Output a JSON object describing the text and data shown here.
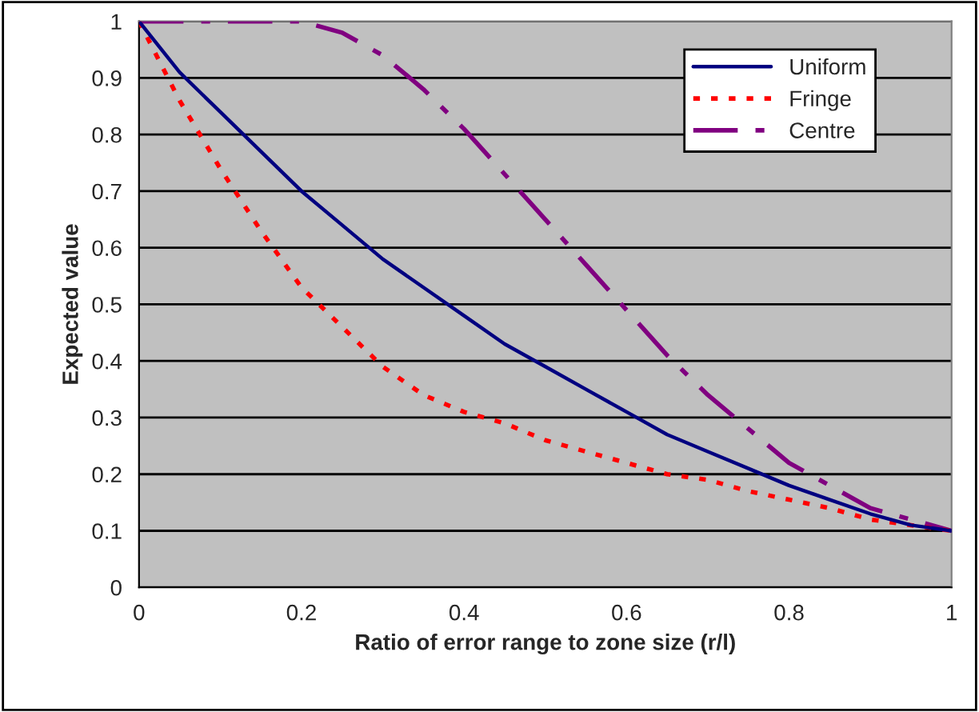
{
  "chart_data": {
    "type": "line",
    "xlabel": "Ratio of error range to zone size (r/l)",
    "ylabel": "Expected value",
    "x": [
      0,
      0.05,
      0.1,
      0.15,
      0.2,
      0.25,
      0.3,
      0.35,
      0.4,
      0.45,
      0.5,
      0.55,
      0.6,
      0.65,
      0.7,
      0.75,
      0.8,
      0.85,
      0.9,
      0.95,
      1
    ],
    "series": [
      {
        "name": "Uniform",
        "color": "#000080",
        "line_style": "solid",
        "values": [
          1,
          0.91,
          0.84,
          0.77,
          0.7,
          0.64,
          0.58,
          0.53,
          0.48,
          0.43,
          0.39,
          0.35,
          0.31,
          0.27,
          0.24,
          0.21,
          0.18,
          0.155,
          0.13,
          0.11,
          0.1
        ]
      },
      {
        "name": "Fringe",
        "color": "#ff0000",
        "line_style": "dotted",
        "values": [
          1,
          0.86,
          0.74,
          0.63,
          0.53,
          0.46,
          0.39,
          0.34,
          0.31,
          0.29,
          0.26,
          0.24,
          0.22,
          0.2,
          0.19,
          0.17,
          0.155,
          0.14,
          0.12,
          0.11,
          0.1
        ]
      },
      {
        "name": "Centre",
        "color": "#800080",
        "line_style": "dashdot",
        "values": [
          1,
          1,
          1,
          1,
          1,
          0.98,
          0.94,
          0.88,
          0.81,
          0.73,
          0.65,
          0.57,
          0.49,
          0.41,
          0.34,
          0.28,
          0.22,
          0.18,
          0.14,
          0.12,
          0.1
        ]
      }
    ],
    "xlim": [
      0,
      1
    ],
    "xticks": [
      0,
      0.2,
      0.4,
      0.6,
      0.8,
      1
    ],
    "ylim": [
      0,
      1
    ],
    "yticks": [
      0,
      0.1,
      0.2,
      0.3,
      0.4,
      0.5,
      0.6,
      0.7,
      0.8,
      0.9,
      1
    ],
    "grid": "y",
    "legend": "top right"
  }
}
